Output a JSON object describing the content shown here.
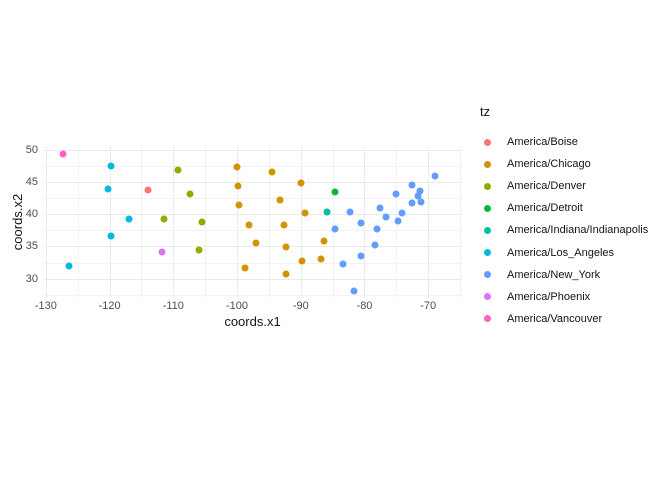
{
  "chart_data": {
    "type": "scatter",
    "title": "",
    "xlabel": "coords.x1",
    "ylabel": "coords.x2",
    "legend_title": "tz",
    "legend_position": "right",
    "grid": true,
    "xlim": [
      -130.45,
      -64.7
    ],
    "ylim": [
      27.0,
      50.6
    ],
    "x_ticks": [
      -130,
      -120,
      -110,
      -100,
      -90,
      -80,
      -70
    ],
    "y_ticks": [
      30,
      35,
      40,
      45,
      50
    ],
    "x_minor_ticks": [
      -125,
      -115,
      -105,
      -95,
      -85,
      -75,
      -65
    ],
    "y_minor_ticks": [
      27.5,
      32.5,
      37.5,
      42.5,
      47.5
    ],
    "series": [
      {
        "name": "America/Boise",
        "color": "#F8766D",
        "points": [
          [
            -113.9,
            43.7
          ]
        ]
      },
      {
        "name": "America/Chicago",
        "color": "#D39200",
        "points": [
          [
            -100.0,
            47.3
          ],
          [
            -94.5,
            46.6
          ],
          [
            -99.8,
            44.4
          ],
          [
            -90.0,
            44.8
          ],
          [
            -93.3,
            42.2
          ],
          [
            -99.7,
            41.4
          ],
          [
            -89.4,
            40.2
          ],
          [
            -98.1,
            38.4
          ],
          [
            -92.7,
            38.3
          ],
          [
            -97.0,
            35.5
          ],
          [
            -86.4,
            35.8
          ],
          [
            -92.3,
            34.9
          ],
          [
            -89.8,
            32.8
          ],
          [
            -86.9,
            33.0
          ],
          [
            -98.7,
            31.6
          ],
          [
            -92.3,
            30.7
          ]
        ]
      },
      {
        "name": "America/Denver",
        "color": "#93AA00",
        "points": [
          [
            -109.3,
            46.9
          ],
          [
            -107.4,
            43.1
          ],
          [
            -111.4,
            39.2
          ],
          [
            -105.5,
            38.8
          ],
          [
            -105.9,
            34.5
          ]
        ]
      },
      {
        "name": "America/Detroit",
        "color": "#00BA38",
        "points": [
          [
            -84.7,
            43.4
          ]
        ]
      },
      {
        "name": "America/Indiana/Indianapolis",
        "color": "#00C19F",
        "points": [
          [
            -85.9,
            40.3
          ]
        ]
      },
      {
        "name": "America/Los_Angeles",
        "color": "#00B9E3",
        "points": [
          [
            -119.8,
            47.5
          ],
          [
            -120.2,
            43.9
          ],
          [
            -116.9,
            39.2
          ],
          [
            -119.8,
            36.6
          ],
          [
            -126.3,
            31.9
          ]
        ]
      },
      {
        "name": "America/New_York",
        "color": "#619CFF",
        "points": [
          [
            -68.9,
            45.9
          ],
          [
            -72.5,
            44.5
          ],
          [
            -75.1,
            43.2
          ],
          [
            -71.3,
            43.6
          ],
          [
            -71.6,
            42.8
          ],
          [
            -72.5,
            41.7
          ],
          [
            -71.1,
            41.9
          ],
          [
            -74.1,
            40.2
          ],
          [
            -74.8,
            38.9
          ],
          [
            -77.5,
            40.9
          ],
          [
            -82.3,
            40.3
          ],
          [
            -76.6,
            39.5
          ],
          [
            -80.6,
            38.6
          ],
          [
            -84.7,
            37.7
          ],
          [
            -78.1,
            37.7
          ],
          [
            -78.3,
            35.3
          ],
          [
            -80.6,
            33.5
          ],
          [
            -83.4,
            32.3
          ],
          [
            -81.6,
            28.1
          ]
        ]
      },
      {
        "name": "America/Phoenix",
        "color": "#DB72FB",
        "points": [
          [
            -111.7,
            34.2
          ]
        ]
      },
      {
        "name": "America/Vancouver",
        "color": "#FF61C3",
        "points": [
          [
            -127.3,
            49.4
          ]
        ]
      }
    ]
  }
}
